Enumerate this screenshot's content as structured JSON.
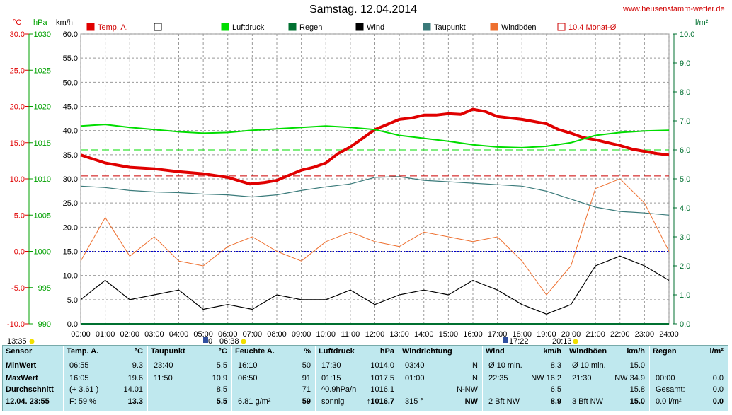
{
  "title": "Samstag. 12.04.2014",
  "website": "www.heusenstamm-wetter.de",
  "units": {
    "temp": "°C",
    "pressure": "hPa",
    "wind": "km/h",
    "rain": "l/m²"
  },
  "legend": [
    {
      "label": "Temp. A.",
      "color": "#e00000"
    },
    {
      "label": "",
      "color": "#ffffff"
    },
    {
      "label": "Luftdruck",
      "color": "#00dd00"
    },
    {
      "label": "Regen",
      "color": "#007030"
    },
    {
      "label": "Wind",
      "color": "#000000"
    },
    {
      "label": "Taupunkt",
      "color": "#3a7a7a"
    },
    {
      "label": "Windböen",
      "color": "#ee7030"
    },
    {
      "label": "10.4 Monat-Ø",
      "color": "#cc0000"
    }
  ],
  "axes": {
    "temp_ticks": [
      "30.0",
      "25.0",
      "20.0",
      "15.0",
      "10.0",
      "5.0",
      "0.0",
      "-5.0",
      "-10.0"
    ],
    "pressure_ticks": [
      "1030",
      "1025",
      "1020",
      "1015",
      "1010",
      "1005",
      "1000",
      "995",
      "990"
    ],
    "wind_ticks": [
      "60.0",
      "55.0",
      "50.0",
      "45.0",
      "40.0",
      "35.0",
      "30.0",
      "25.0",
      "20.0",
      "15.0",
      "10.0",
      "5.0",
      "0.0"
    ],
    "rain_ticks": [
      "10.0",
      "9.0",
      "8.0",
      "7.0",
      "6.0",
      "5.0",
      "4.0",
      "3.0",
      "2.0",
      "1.0",
      "0.0"
    ],
    "time_ticks": [
      "00:00",
      "01:00",
      "02:00",
      "03:00",
      "04:00",
      "05:00",
      "06:00",
      "07:00",
      "08:00",
      "09:00",
      "10:00",
      "11:00",
      "12:00",
      "13:00",
      "14:00",
      "15:00",
      "16:00",
      "17:00",
      "18:00",
      "19:00",
      "20:00",
      "21:00",
      "22:00",
      "23:00",
      "24:00"
    ]
  },
  "sun_markers": {
    "left": "13:35",
    "sunrise": "06:38",
    "mark_05": "0",
    "sunset": "20:13",
    "mark_17": "17:22"
  },
  "chart_data": {
    "type": "line",
    "title": "Samstag. 12.04.2014",
    "x_unit": "hour",
    "xlim": [
      0,
      24
    ],
    "temp_ylim": [
      -10,
      30
    ],
    "pressure_ylim": [
      990,
      1030
    ],
    "wind_ylim": [
      0,
      60
    ],
    "rain_ylim": [
      0,
      10
    ],
    "reference_lines": {
      "temp_month_avg": 10.4,
      "pressure_avg": 1014.0,
      "wind_zero_temp_line": 0.0
    },
    "series": [
      {
        "name": "Temp. A.",
        "axis": "temp",
        "x": [
          0,
          1,
          2,
          3,
          4,
          5,
          6,
          6.9,
          7.5,
          8,
          8.5,
          9,
          9.5,
          10,
          10.5,
          11,
          11.5,
          12,
          12.5,
          13,
          13.5,
          14,
          14.5,
          15,
          15.5,
          16,
          16.5,
          17,
          17.5,
          18,
          18.5,
          19,
          19.5,
          20,
          20.5,
          21,
          21.5,
          22,
          22.5,
          23,
          23.5,
          24
        ],
        "values": [
          13.3,
          12.2,
          11.6,
          11.4,
          11.0,
          10.7,
          10.2,
          9.3,
          9.5,
          9.8,
          10.5,
          11.2,
          11.6,
          12.2,
          13.5,
          14.4,
          15.6,
          16.8,
          17.5,
          18.2,
          18.4,
          18.8,
          18.8,
          19.0,
          18.9,
          19.6,
          19.3,
          18.6,
          18.4,
          18.2,
          17.9,
          17.6,
          16.8,
          16.3,
          15.7,
          15.4,
          15.0,
          14.6,
          14.1,
          13.8,
          13.5,
          13.3
        ]
      },
      {
        "name": "Luftdruck",
        "axis": "pressure",
        "x": [
          0,
          1,
          2,
          3,
          4,
          5,
          6,
          7,
          8,
          9,
          10,
          11,
          12,
          13,
          14,
          15,
          16,
          17,
          18,
          19,
          20,
          21,
          22,
          23,
          24
        ],
        "values": [
          1017.3,
          1017.5,
          1017.1,
          1016.8,
          1016.5,
          1016.3,
          1016.4,
          1016.7,
          1016.9,
          1017.1,
          1017.3,
          1017.1,
          1016.8,
          1016.0,
          1015.6,
          1015.2,
          1014.7,
          1014.4,
          1014.3,
          1014.5,
          1015.0,
          1016.0,
          1016.4,
          1016.6,
          1016.7
        ]
      },
      {
        "name": "Taupunkt",
        "axis": "temp",
        "x": [
          0,
          1,
          2,
          3,
          4,
          5,
          6,
          7,
          8,
          9,
          10,
          11,
          12,
          13,
          14,
          15,
          16,
          17,
          18,
          19,
          20,
          21,
          22,
          23,
          24
        ],
        "values": [
          9.0,
          8.8,
          8.4,
          8.2,
          8.1,
          7.9,
          7.8,
          7.5,
          7.8,
          8.4,
          8.9,
          9.3,
          10.2,
          10.3,
          9.8,
          9.6,
          9.4,
          9.2,
          9.0,
          8.3,
          7.2,
          6.1,
          5.5,
          5.3,
          5.0
        ]
      },
      {
        "name": "Wind",
        "axis": "wind",
        "x": [
          0,
          1,
          2,
          3,
          4,
          5,
          6,
          7,
          8,
          9,
          10,
          11,
          12,
          13,
          14,
          15,
          16,
          17,
          18,
          19,
          20,
          21,
          22,
          23,
          24
        ],
        "values": [
          5,
          9,
          5,
          6,
          7,
          3,
          4,
          3,
          6,
          5,
          5,
          7,
          4,
          6,
          7,
          6,
          9,
          7,
          4,
          2,
          4,
          12,
          14,
          12,
          9
        ]
      },
      {
        "name": "Windböen",
        "axis": "wind",
        "x": [
          0,
          1,
          2,
          3,
          4,
          5,
          6,
          7,
          8,
          9,
          10,
          11,
          12,
          13,
          14,
          15,
          16,
          17,
          18,
          19,
          20,
          21,
          22,
          23,
          24
        ],
        "values": [
          13,
          22,
          14,
          18,
          13,
          12,
          16,
          18,
          15,
          13,
          17,
          19,
          17,
          16,
          19,
          18,
          17,
          18,
          13,
          6,
          12,
          28,
          30,
          25,
          15
        ]
      },
      {
        "name": "Regen",
        "axis": "rain",
        "x": [
          0,
          24
        ],
        "values": [
          0,
          0
        ]
      }
    ]
  },
  "table": {
    "sensor": {
      "header": "Sensor",
      "rows": [
        "MinWert",
        "MaxWert",
        "Durchschnitt",
        "12.04.  23:55"
      ]
    },
    "temp": {
      "header": "Temp. A.",
      "unit": "°C",
      "rows": [
        [
          "06:55",
          "9.3"
        ],
        [
          "16:05",
          "19.6"
        ],
        [
          "(+ 3.61 )",
          "14.01"
        ],
        [
          "F: 59 %",
          "13.3"
        ]
      ]
    },
    "dew": {
      "header": "Taupunkt",
      "unit": "°C",
      "rows": [
        [
          "23:40",
          "5.5"
        ],
        [
          "11:50",
          "10.9"
        ],
        [
          "",
          "8.5"
        ],
        [
          "",
          "5.5"
        ]
      ]
    },
    "hum": {
      "header": "Feuchte A.",
      "unit": "%",
      "rows": [
        [
          "16:10",
          "50"
        ],
        [
          "06:50",
          "91"
        ],
        [
          "",
          "71"
        ],
        [
          "6.81 g/m²",
          "59"
        ]
      ]
    },
    "press": {
      "header": "Luftdruck",
      "unit": "hPa",
      "rows": [
        [
          "17:30",
          "1014.0"
        ],
        [
          "01:15",
          "1017.5"
        ],
        [
          "^0.9hPa/h",
          "1016.1"
        ],
        [
          "sonnig",
          "↑1016.7"
        ]
      ]
    },
    "dir": {
      "header": "Windrichtung",
      "unit": "",
      "rows": [
        [
          "03:40",
          "N"
        ],
        [
          "01:00",
          "N"
        ],
        [
          "",
          "N-NW"
        ],
        [
          "315 °",
          "NW"
        ]
      ]
    },
    "wind": {
      "header": "Wind",
      "unit": "km/h",
      "rows": [
        [
          "Ø 10 min.",
          "8.3"
        ],
        [
          "22:35",
          "NW 16.2"
        ],
        [
          "",
          "6.5"
        ],
        [
          "2 Bft NW",
          "8.9"
        ]
      ]
    },
    "gust": {
      "header": "Windböen",
      "unit": "km/h",
      "rows": [
        [
          "Ø 10 min.",
          "15.0"
        ],
        [
          "21:30",
          "NW 34.9"
        ],
        [
          "",
          "15.8"
        ],
        [
          "3 Bft NW",
          "15.0"
        ]
      ]
    },
    "rain": {
      "header": "Regen",
      "unit": "l/m²",
      "rows": [
        [
          "",
          ""
        ],
        [
          "00:00",
          "0.0"
        ],
        [
          "Gesamt:",
          "0.0"
        ],
        [
          "0.0 l/m²",
          "0.0"
        ]
      ]
    }
  }
}
